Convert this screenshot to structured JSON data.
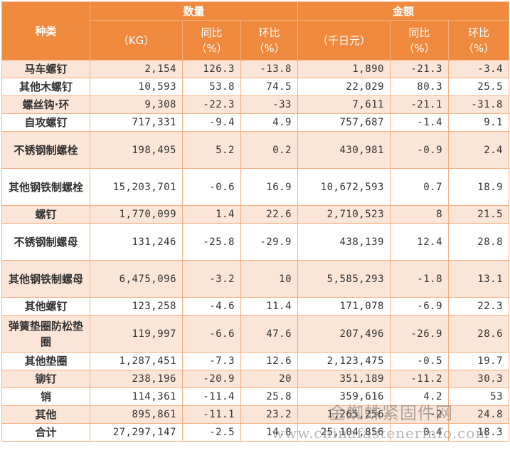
{
  "header": {
    "category": "种类",
    "quantity_group": "数量",
    "amount_group": "金额",
    "qty_unit": "（KG）",
    "amt_unit": "（千日元）",
    "yoy": "同比",
    "mom": "环比",
    "pct": "（%）"
  },
  "rows": [
    {
      "name": "马车螺钉",
      "qty": "2,154",
      "qty_yoy": "126.3",
      "qty_mom": "-13.8",
      "amt": "1,890",
      "amt_yoy": "-21.3",
      "amt_mom": "-3.4"
    },
    {
      "name": "其他木螺钉",
      "qty": "10,593",
      "qty_yoy": "53.8",
      "qty_mom": "74.5",
      "amt": "22,029",
      "amt_yoy": "80.3",
      "amt_mom": "25.5"
    },
    {
      "name": "螺丝钩·环",
      "qty": "9,308",
      "qty_yoy": "-22.3",
      "qty_mom": "-33",
      "amt": "7,611",
      "amt_yoy": "-21.1",
      "amt_mom": "-31.8"
    },
    {
      "name": "自攻螺钉",
      "qty": "717,331",
      "qty_yoy": "-9.4",
      "qty_mom": "4.9",
      "amt": "757,687",
      "amt_yoy": "-1.4",
      "amt_mom": "9.1"
    },
    {
      "name": "不锈钢制螺栓",
      "qty": "198,495",
      "qty_yoy": "5.2",
      "qty_mom": "0.2",
      "amt": "430,981",
      "amt_yoy": "-0.9",
      "amt_mom": "2.4"
    },
    {
      "name": "其他钢铁制螺栓",
      "qty": "15,203,701",
      "qty_yoy": "-0.6",
      "qty_mom": "16.9",
      "amt": "10,672,593",
      "amt_yoy": "0.7",
      "amt_mom": "18.9"
    },
    {
      "name": "螺钉",
      "qty": "1,770,099",
      "qty_yoy": "1.4",
      "qty_mom": "22.6",
      "amt": "2,710,523",
      "amt_yoy": "8",
      "amt_mom": "21.5"
    },
    {
      "name": "不锈钢制螺母",
      "qty": "131,246",
      "qty_yoy": "-25.8",
      "qty_mom": "-29.9",
      "amt": "438,139",
      "amt_yoy": "12.4",
      "amt_mom": "28.8"
    },
    {
      "name": "其他钢铁制螺母",
      "qty": "6,475,096",
      "qty_yoy": "-3.2",
      "qty_mom": "10",
      "amt": "5,585,293",
      "amt_yoy": "-1.8",
      "amt_mom": "13.1"
    },
    {
      "name": "其他螺钉",
      "qty": "123,258",
      "qty_yoy": "-4.6",
      "qty_mom": "11.4",
      "amt": "171,078",
      "amt_yoy": "-6.9",
      "amt_mom": "22.3"
    },
    {
      "name": "弹簧垫圈防松垫圈",
      "qty": "119,997",
      "qty_yoy": "-6.6",
      "qty_mom": "47.6",
      "amt": "207,496",
      "amt_yoy": "-26.9",
      "amt_mom": "28.6"
    },
    {
      "name": "其他垫圈",
      "qty": "1,287,451",
      "qty_yoy": "-7.3",
      "qty_mom": "12.6",
      "amt": "2,123,475",
      "amt_yoy": "-0.5",
      "amt_mom": "19.7"
    },
    {
      "name": "铆钉",
      "qty": "238,196",
      "qty_yoy": "-20.9",
      "qty_mom": "20",
      "amt": "351,189",
      "amt_yoy": "-11.2",
      "amt_mom": "30.3"
    },
    {
      "name": "销",
      "qty": "114,361",
      "qty_yoy": "-11.4",
      "qty_mom": "25.8",
      "amt": "359,616",
      "amt_yoy": "4.2",
      "amt_mom": "53"
    },
    {
      "name": "其他",
      "qty": "895,861",
      "qty_yoy": "-11.1",
      "qty_mom": "23.2",
      "amt": "1,265,256",
      "amt_yoy": "-2",
      "amt_mom": "24.8"
    },
    {
      "name": "合计",
      "qty": "27,297,147",
      "qty_yoy": "-2.5",
      "qty_mom": "14.8",
      "amt": "25,104,856",
      "amt_yoy": "0.4",
      "amt_mom": "18.3"
    }
  ],
  "watermark": {
    "cn": "金蜘蛛紧固件网",
    "url": "www.chinafastenerinfo.com"
  }
}
